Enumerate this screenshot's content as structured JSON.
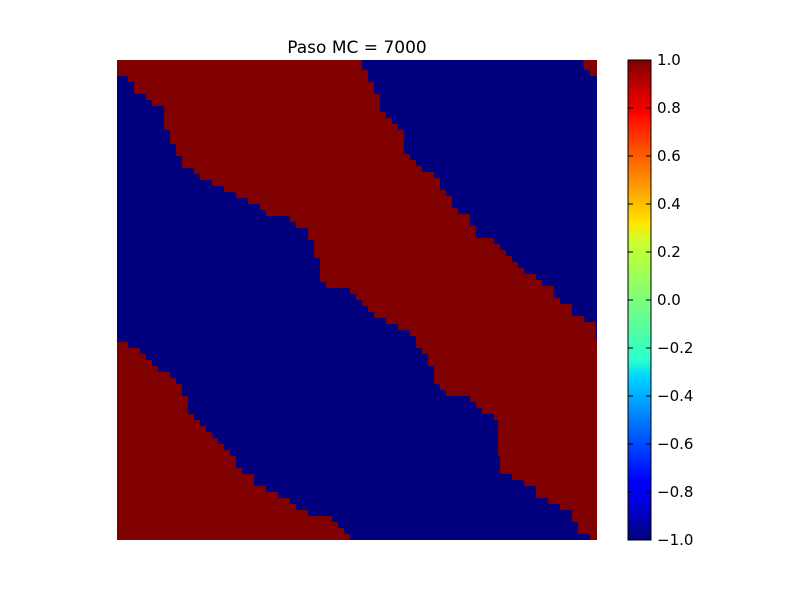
{
  "chart_data": {
    "type": "heatmap",
    "title": "Paso MC = 7000",
    "xlabel": "",
    "ylabel": "",
    "axes_visible": false,
    "colormap": "jet",
    "clim": [
      -1.0,
      1.0
    ],
    "grid": false,
    "lattice_values": [
      -1,
      1
    ],
    "description_of_pattern": "diagonal stripes of spin +1 (dark red) and -1 (dark blue)",
    "domains": [
      {
        "spin": 1,
        "region": "top-left red stripe",
        "boundary_top": [
          [
            0,
            0.053
          ],
          [
            0.063,
            0.083
          ],
          [
            0.104,
            0.125
          ],
          [
            0.125,
            0.187
          ],
          [
            0.188,
            0.25
          ],
          [
            0.271,
            0.312
          ],
          [
            0.417,
            0.375
          ],
          [
            0.458,
            0.417
          ],
          [
            0.5,
            0.458
          ],
          [
            0.583,
            0.521
          ],
          [
            0.625,
            0.583
          ],
          [
            0.729,
            0.646
          ],
          [
            0.771,
            0.708
          ],
          [
            0.833,
            0.75
          ],
          [
            0.917,
            0.802
          ],
          [
            1.0,
            0.875
          ]
        ],
        "boundary_bottom": [
          [
            0,
            0
          ],
          [
            1,
            0
          ]
        ]
      }
    ],
    "colorbar": {
      "ticks": [
        "1.0",
        "0.8",
        "0.6",
        "0.4",
        "0.2",
        "0.0",
        "−0.2",
        "−0.4",
        "−0.6",
        "−0.8",
        "−1.0"
      ],
      "min": -1.0,
      "max": 1.0
    },
    "colors": {
      "plus": "#800000",
      "minus": "#00007f"
    }
  }
}
